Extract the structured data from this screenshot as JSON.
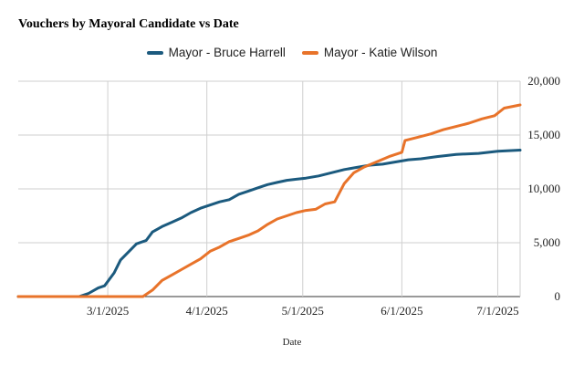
{
  "chart_data": {
    "type": "line",
    "title": "Vouchers by Mayoral Candidate vs Date",
    "xlabel": "Date",
    "ylabel": "",
    "x_ticks": [
      "3/1/2025",
      "4/1/2025",
      "5/1/2025",
      "6/1/2025",
      "7/1/2025"
    ],
    "y_ticks": [
      "0",
      "5,000",
      "10,000",
      "15,000",
      "20,000"
    ],
    "ylim": [
      0,
      20000
    ],
    "xlim": [
      "2025-02-01",
      "2025-07-08"
    ],
    "grid": true,
    "legend": "top",
    "series": [
      {
        "name": "Mayor - Bruce Harrell",
        "color": "#1b5a7e",
        "x": [
          "2025-02-01",
          "2025-02-20",
          "2025-02-23",
          "2025-02-26",
          "2025-02-28",
          "2025-03-03",
          "2025-03-05",
          "2025-03-08",
          "2025-03-10",
          "2025-03-13",
          "2025-03-15",
          "2025-03-18",
          "2025-03-21",
          "2025-03-24",
          "2025-03-27",
          "2025-03-30",
          "2025-04-02",
          "2025-04-05",
          "2025-04-08",
          "2025-04-11",
          "2025-04-14",
          "2025-04-17",
          "2025-04-20",
          "2025-04-23",
          "2025-04-26",
          "2025-04-29",
          "2025-05-02",
          "2025-05-06",
          "2025-05-10",
          "2025-05-14",
          "2025-05-18",
          "2025-05-22",
          "2025-05-26",
          "2025-05-30",
          "2025-06-03",
          "2025-06-07",
          "2025-06-12",
          "2025-06-18",
          "2025-06-25",
          "2025-07-01",
          "2025-07-08"
        ],
        "values": [
          0,
          0,
          300,
          800,
          1000,
          2200,
          3400,
          4300,
          4900,
          5200,
          6000,
          6500,
          6900,
          7300,
          7800,
          8200,
          8500,
          8800,
          9000,
          9500,
          9800,
          10100,
          10400,
          10600,
          10800,
          10900,
          11000,
          11200,
          11500,
          11800,
          12000,
          12200,
          12300,
          12500,
          12700,
          12800,
          13000,
          13200,
          13300,
          13500,
          13600
        ]
      },
      {
        "name": "Mayor - Katie Wilson",
        "color": "#e8732a",
        "x": [
          "2025-02-01",
          "2025-03-01",
          "2025-03-12",
          "2025-03-15",
          "2025-03-18",
          "2025-03-21",
          "2025-03-24",
          "2025-03-27",
          "2025-03-30",
          "2025-04-02",
          "2025-04-05",
          "2025-04-08",
          "2025-04-11",
          "2025-04-14",
          "2025-04-17",
          "2025-04-20",
          "2025-04-23",
          "2025-04-26",
          "2025-04-29",
          "2025-05-02",
          "2025-05-05",
          "2025-05-08",
          "2025-05-11",
          "2025-05-14",
          "2025-05-17",
          "2025-05-20",
          "2025-05-24",
          "2025-05-28",
          "2025-06-01",
          "2025-06-02",
          "2025-06-06",
          "2025-06-10",
          "2025-06-14",
          "2025-06-18",
          "2025-06-22",
          "2025-06-26",
          "2025-06-30",
          "2025-07-03",
          "2025-07-08"
        ],
        "values": [
          0,
          0,
          0,
          600,
          1500,
          2000,
          2500,
          3000,
          3500,
          4200,
          4600,
          5100,
          5400,
          5700,
          6100,
          6700,
          7200,
          7500,
          7800,
          8000,
          8100,
          8600,
          8800,
          10500,
          11500,
          12000,
          12500,
          13000,
          13400,
          14500,
          14800,
          15100,
          15500,
          15800,
          16100,
          16500,
          16800,
          17500,
          17800
        ]
      }
    ]
  }
}
